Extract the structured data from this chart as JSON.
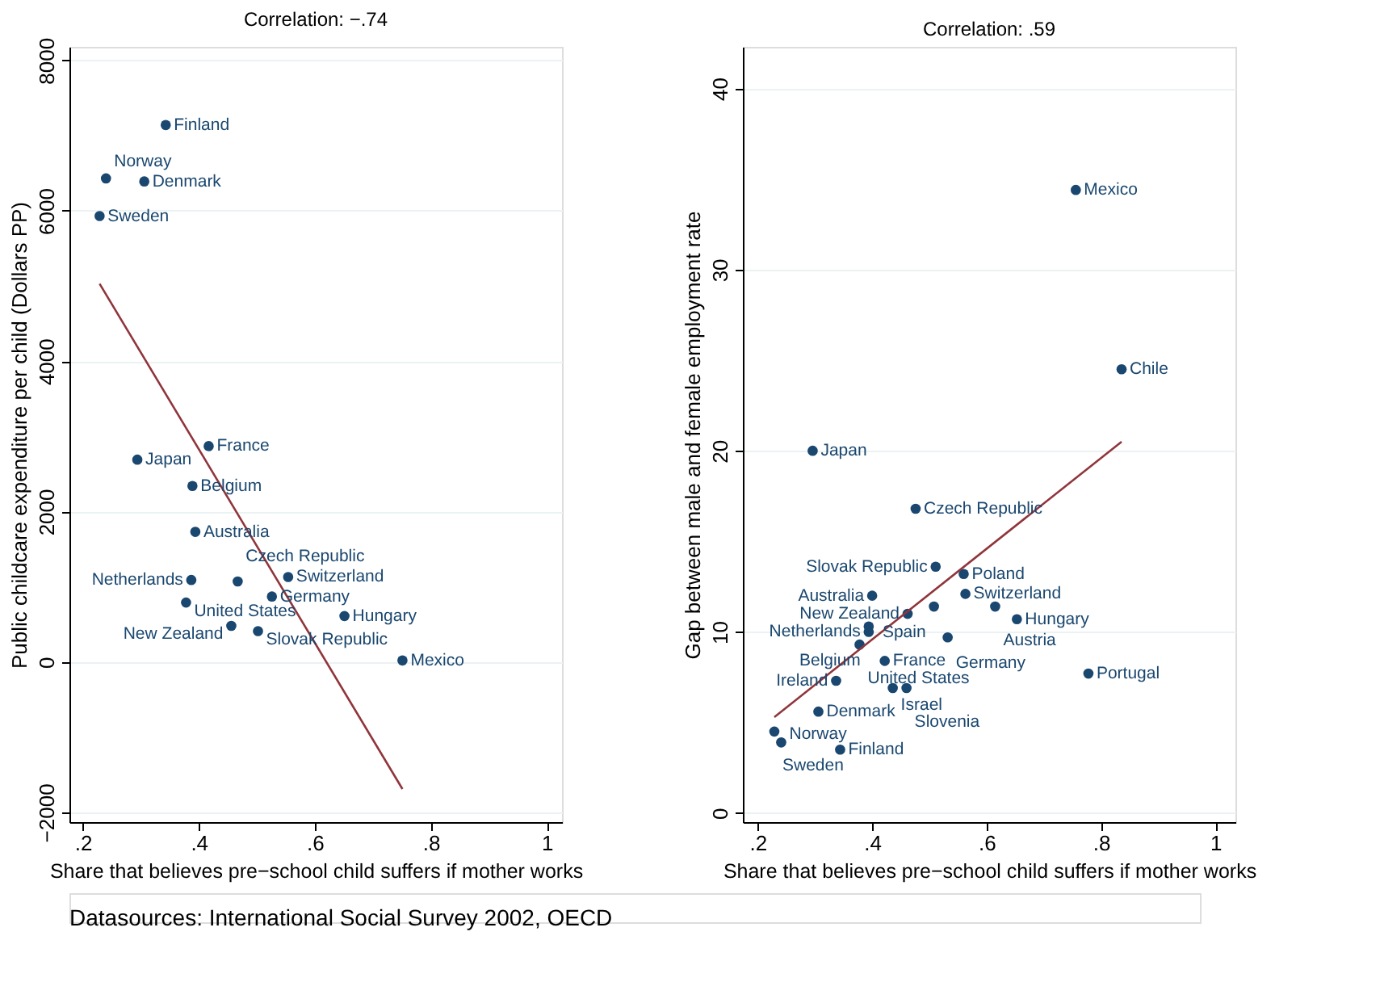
{
  "chart_data": [
    {
      "type": "scatter",
      "title": "Correlation: −.74",
      "xlabel": "Share that believes pre−school child suffers if mother works",
      "ylabel": "Public childcare expenditure per child (Dollars PP)",
      "xlim": [
        0.177,
        1.026
      ],
      "ylim": [
        -2130,
        8180
      ],
      "xticks": [
        {
          "value": 0.2,
          "label": ".2"
        },
        {
          "value": 0.4,
          "label": ".4"
        },
        {
          "value": 0.6,
          "label": ".6"
        },
        {
          "value": 0.8,
          "label": ".8"
        },
        {
          "value": 1,
          "label": "1"
        }
      ],
      "yticks": [
        {
          "value": -2000,
          "label": "−2000"
        },
        0,
        2000,
        4000,
        6000,
        8000
      ],
      "grid": "y",
      "series": [
        {
          "type": "scatter",
          "marker": "circle",
          "color": "#1a476f",
          "x": [
            0.343,
            0.24,
            0.306,
            0.229,
            0.417,
            0.294,
            0.389,
            0.394,
            0.387,
            0.467,
            0.554,
            0.526,
            0.378,
            0.651,
            0.456,
            0.502,
            0.751
          ],
          "values": [
            7140,
            6430,
            6390,
            5930,
            2870,
            2690,
            2340,
            1730,
            1090,
            1070,
            1130,
            870,
            790,
            610,
            480,
            410,
            20
          ]
        },
        {
          "type": "line",
          "color": "#90353b",
          "x": [
            0.229,
            0.751
          ],
          "values": [
            5030,
            -1690
          ]
        }
      ],
      "annotations": [
        {
          "text": "Finland",
          "x": 0.343,
          "y": 7140
        },
        {
          "text": "Norway",
          "x": 0.24,
          "y": 6430
        },
        {
          "text": "Denmark",
          "x": 0.306,
          "y": 6390
        },
        {
          "text": "Sweden",
          "x": 0.229,
          "y": 5930
        },
        {
          "text": "France",
          "x": 0.417,
          "y": 2870
        },
        {
          "text": "Japan",
          "x": 0.294,
          "y": 2690
        },
        {
          "text": "Belgium",
          "x": 0.389,
          "y": 2340
        },
        {
          "text": "Australia",
          "x": 0.394,
          "y": 1730
        },
        {
          "text": "Netherlands",
          "x": 0.387,
          "y": 1090
        },
        {
          "text": "Czech Republic",
          "x": 0.467,
          "y": 1070
        },
        {
          "text": "Switzerland",
          "x": 0.554,
          "y": 1130
        },
        {
          "text": "Germany",
          "x": 0.526,
          "y": 870
        },
        {
          "text": "United States",
          "x": 0.378,
          "y": 790
        },
        {
          "text": "Hungary",
          "x": 0.651,
          "y": 610
        },
        {
          "text": "New Zealand",
          "x": 0.456,
          "y": 480
        },
        {
          "text": "Slovak Republic",
          "x": 0.502,
          "y": 410
        },
        {
          "text": "Mexico",
          "x": 0.751,
          "y": 20
        },
        "Datasources: International Social Survey 2002, OECD"
      ]
    },
    {
      "type": "scatter",
      "title": "Correlation: .59",
      "xlabel": "Share that believes pre−school child suffers if mother works",
      "ylabel": "Gap between male and female employment rate",
      "xlim": [
        0.174,
        1.035
      ],
      "ylim": [
        -0.5,
        42.3
      ],
      "xticks": [
        {
          "value": 0.2,
          "label": ".2"
        },
        {
          "value": 0.4,
          "label": ".4"
        },
        {
          "value": 0.6,
          "label": ".6"
        },
        {
          "value": 0.8,
          "label": ".8"
        },
        {
          "value": 1,
          "label": "1"
        }
      ],
      "yticks": [
        0,
        10,
        20,
        30,
        40
      ],
      "grid": "y",
      "series": [
        {
          "type": "scatter",
          "marker": "circle",
          "color": "#1a476f",
          "x": [
            0.296,
            0.476,
            0.511,
            0.56,
            0.563,
            0.4,
            0.508,
            0.615,
            0.462,
            0.653,
            0.394,
            0.394,
            0.532,
            0.378,
            0.422,
            0.337,
            0.436,
            0.46,
            0.306,
            0.229,
            0.241,
            0.344,
            0.756,
            0.836,
            0.778
          ],
          "values": [
            20.0,
            16.8,
            13.6,
            13.2,
            12.1,
            12.0,
            11.4,
            11.4,
            11.0,
            10.7,
            10.3,
            10.0,
            9.7,
            9.3,
            8.4,
            7.3,
            6.9,
            6.9,
            5.6,
            4.5,
            3.9,
            3.5,
            34.4,
            24.5,
            7.7
          ]
        },
        {
          "type": "line",
          "color": "#90353b",
          "x": [
            0.229,
            0.836
          ],
          "values": [
            5.3,
            20.5
          ]
        }
      ],
      "annotations": [
        {
          "text": "Japan",
          "x": 0.296,
          "y": 20.0
        },
        {
          "text": "Czech Republic",
          "x": 0.476,
          "y": 16.8
        },
        {
          "text": "Slovak Republic",
          "x": 0.511,
          "y": 13.6
        },
        {
          "text": "Poland",
          "x": 0.56,
          "y": 13.2
        },
        {
          "text": "Switzerland",
          "x": 0.563,
          "y": 12.1
        },
        {
          "text": "Australia",
          "x": 0.4,
          "y": 12.0
        },
        {
          "text": "Spain",
          "x": 0.508,
          "y": 11.4
        },
        {
          "text": "Austria",
          "x": 0.615,
          "y": 11.4
        },
        {
          "text": "New Zealand",
          "x": 0.462,
          "y": 11.0
        },
        {
          "text": "Hungary",
          "x": 0.653,
          "y": 10.7
        },
        {
          "text": "Belgium",
          "x": 0.394,
          "y": 10.3
        },
        {
          "text": "Netherlands",
          "x": 0.394,
          "y": 10.0
        },
        {
          "text": "Germany",
          "x": 0.532,
          "y": 9.7
        },
        {
          "text": "United States",
          "x": 0.378,
          "y": 9.3
        },
        {
          "text": "France",
          "x": 0.422,
          "y": 8.4
        },
        {
          "text": "Ireland",
          "x": 0.337,
          "y": 7.3
        },
        {
          "text": "Israel",
          "x": 0.436,
          "y": 6.9
        },
        {
          "text": "Slovenia",
          "x": 0.46,
          "y": 6.9
        },
        {
          "text": "Denmark",
          "x": 0.306,
          "y": 5.6
        },
        {
          "text": "Sweden",
          "x": 0.229,
          "y": 4.5
        },
        {
          "text": "Norway",
          "x": 0.241,
          "y": 3.9
        },
        {
          "text": "Finland",
          "x": 0.344,
          "y": 3.5
        },
        {
          "text": "Mexico",
          "x": 0.756,
          "y": 34.4
        },
        {
          "text": "Chile",
          "x": 0.836,
          "y": 24.5
        },
        {
          "text": "Portugal",
          "x": 0.778,
          "y": 7.7
        }
      ]
    }
  ]
}
